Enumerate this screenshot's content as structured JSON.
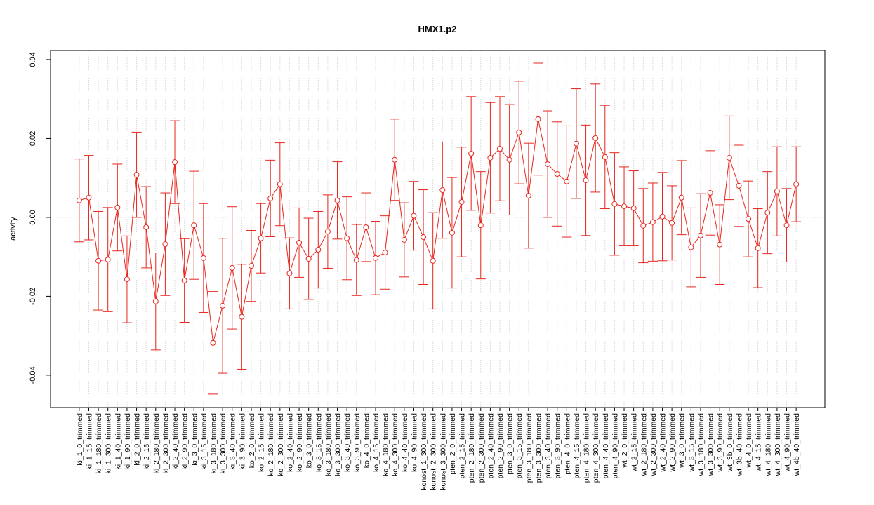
{
  "chart_data": {
    "type": "errorbar_line",
    "title": "HMX1.p2",
    "y_label": "activity",
    "categories": [
      "ki_1_0_trimmed",
      "ki_1_15_trimmed",
      "ki_1_180_trimmed",
      "ki_1_300_trimmed",
      "ki_1_40_trimmed",
      "ki_1_90_trimmed",
      "ki_2_0_trimmed",
      "ki_2_15_trimmed",
      "ki_2_180_trimmed",
      "ki_2_300_trimmed",
      "ki_2_40_trimmed",
      "ki_2_90_trimmed",
      "ki_3_0_trimmed",
      "ki_3_15_trimmed",
      "ki_3_180_trimmed",
      "ki_3_300_trimmed",
      "ki_3_40_trimmed",
      "ki_3_90_trimmed",
      "ko_2_0_trimmed",
      "ko_2_15_trimmed",
      "ko_2_180_trimmed",
      "ko_2_300_trimmed",
      "ko_2_40_trimmed",
      "ko_2_90_trimmed",
      "ko_3_0_trimmed",
      "ko_3_15_trimmed",
      "ko_3_180_trimmed",
      "ko_3_300_trimmed",
      "ko_3_40_trimmed",
      "ko_3_90_trimmed",
      "ko_4_0_trimmed",
      "ko_4_15_trimmed",
      "ko_4_180_trimmed",
      "ko_4_300_trimmed",
      "ko_4_40_trimmed",
      "ko_4_90_trimmed",
      "konost_1_300_trimmed",
      "konost_2_300_trimmed",
      "konost_3_300_trimmed",
      "pten_2_0_trimmed",
      "pten_2_15_trimmed",
      "pten_2_180_trimmed",
      "pten_2_300_trimmed",
      "pten_2_40_trimmed",
      "pten_2_90_trimmed",
      "pten_3_0_trimmed",
      "pten_3_15_trimmed",
      "pten_3_180_trimmed",
      "pten_3_300_trimmed",
      "pten_3_40_trimmed",
      "pten_3_90_trimmed",
      "pten_4_0_trimmed",
      "pten_4_15_trimmed",
      "pten_4_180_trimmed",
      "pten_4_300_trimmed",
      "pten_4_40_trimmed",
      "pten_4_90_trimmed",
      "wt_2_0_trimmed",
      "wt_2_15_trimmed",
      "wt_2_180_trimmed",
      "wt_2_300_trimmed",
      "wt_2_40_trimmed",
      "wt_2_90_trimmed",
      "wt_3_0_trimmed",
      "wt_3_15_trimmed",
      "wt_3_180_trimmed",
      "wt_3_300_trimmed",
      "wt_3_90_trimmed",
      "wt_3b_0_trimmed",
      "wt_3b_40_trimmed",
      "wt_4_0_trimmed",
      "wt_4_15_trimmed",
      "wt_4_180_trimmed",
      "wt_4_300_trimmed",
      "wt_4_90_trimmed",
      "wt_4b_40_trimmed"
    ],
    "values": [
      0.0043,
      0.005,
      -0.011,
      -0.0107,
      0.0025,
      -0.0157,
      0.0108,
      -0.0025,
      -0.0213,
      -0.0068,
      0.014,
      -0.016,
      -0.002,
      -0.0103,
      -0.0318,
      -0.0224,
      -0.0128,
      -0.0252,
      -0.0123,
      -0.0053,
      0.0048,
      0.0084,
      -0.0142,
      -0.0064,
      -0.0105,
      -0.0082,
      -0.0036,
      0.0043,
      -0.0053,
      -0.0108,
      -0.0025,
      -0.0103,
      -0.0089,
      0.0146,
      -0.0057,
      0.0004,
      -0.005,
      -0.011,
      0.0069,
      -0.0039,
      0.0039,
      0.0162,
      -0.002,
      0.0151,
      0.0174,
      0.0146,
      0.0215,
      0.0055,
      0.0249,
      0.0135,
      0.011,
      0.0091,
      0.0187,
      0.0094,
      0.0201,
      0.0153,
      0.0034,
      0.0028,
      0.0023,
      -0.0021,
      -0.0012,
      0.0002,
      -0.0014,
      0.005,
      -0.0076,
      -0.0046,
      0.0062,
      -0.0069,
      0.0151,
      0.008,
      -0.0004,
      -0.0078,
      0.0012,
      0.0066,
      -0.002,
      0.0084
    ],
    "errors": [
      0.0105,
      0.0107,
      0.0125,
      0.0132,
      0.011,
      0.011,
      0.0108,
      0.0103,
      0.0123,
      0.013,
      0.0105,
      0.0106,
      0.0137,
      0.0138,
      0.013,
      0.0171,
      0.0155,
      0.0133,
      0.009,
      0.0088,
      0.0097,
      0.0105,
      0.009,
      0.0088,
      0.0103,
      0.0097,
      0.0093,
      0.0098,
      0.0105,
      0.009,
      0.0087,
      0.0093,
      0.0093,
      0.0103,
      0.0094,
      0.0087,
      0.012,
      0.0122,
      0.0122,
      0.014,
      0.0139,
      0.0144,
      0.0136,
      0.014,
      0.0132,
      0.014,
      0.013,
      0.0133,
      0.0142,
      0.0135,
      0.0132,
      0.0141,
      0.0139,
      0.014,
      0.0137,
      0.0131,
      0.013,
      0.01,
      0.0095,
      0.0094,
      0.0099,
      0.0112,
      0.0094,
      0.0094,
      0.01,
      0.0106,
      0.0107,
      0.0101,
      0.0106,
      0.0103,
      0.0096,
      0.01,
      0.0104,
      0.0113,
      0.0093,
      0.0095
    ],
    "color": "#e8261e",
    "ylim": [
      -0.0482,
      0.0423
    ],
    "yticks": [
      -0.04,
      -0.02,
      {
        "value": 0,
        "label": "0.00"
      },
      0.02,
      0.04
    ],
    "grid": true,
    "hline": 0
  }
}
